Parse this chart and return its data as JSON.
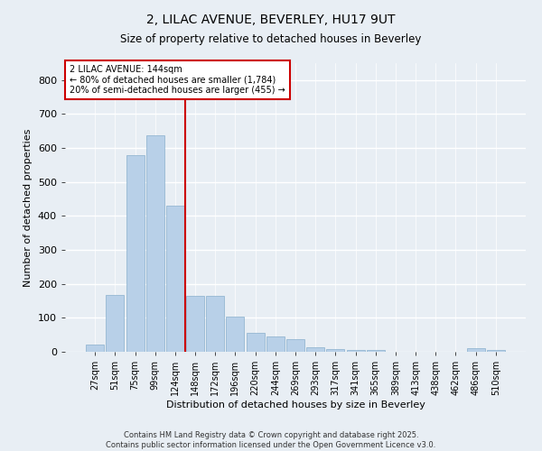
{
  "title_line1": "2, LILAC AVENUE, BEVERLEY, HU17 9UT",
  "title_line2": "Size of property relative to detached houses in Beverley",
  "xlabel": "Distribution of detached houses by size in Beverley",
  "ylabel": "Number of detached properties",
  "categories": [
    "27sqm",
    "51sqm",
    "75sqm",
    "99sqm",
    "124sqm",
    "148sqm",
    "172sqm",
    "196sqm",
    "220sqm",
    "244sqm",
    "269sqm",
    "293sqm",
    "317sqm",
    "341sqm",
    "365sqm",
    "389sqm",
    "413sqm",
    "438sqm",
    "462sqm",
    "486sqm",
    "510sqm"
  ],
  "values": [
    20,
    168,
    578,
    638,
    430,
    165,
    165,
    103,
    55,
    45,
    37,
    14,
    8,
    4,
    4,
    0,
    0,
    0,
    0,
    10,
    5
  ],
  "bar_color": "#b8d0e8",
  "bar_edge_color": "#8ab0cc",
  "vline_color": "#cc0000",
  "annotation_text": "2 LILAC AVENUE: 144sqm\n← 80% of detached houses are smaller (1,784)\n20% of semi-detached houses are larger (455) →",
  "annotation_box_color": "#ffffff",
  "annotation_box_edge": "#cc0000",
  "background_color": "#e8eef4",
  "grid_color": "#ffffff",
  "footnote": "Contains HM Land Registry data © Crown copyright and database right 2025.\nContains public sector information licensed under the Open Government Licence v3.0.",
  "ylim": [
    0,
    850
  ],
  "yticks": [
    0,
    100,
    200,
    300,
    400,
    500,
    600,
    700,
    800
  ]
}
